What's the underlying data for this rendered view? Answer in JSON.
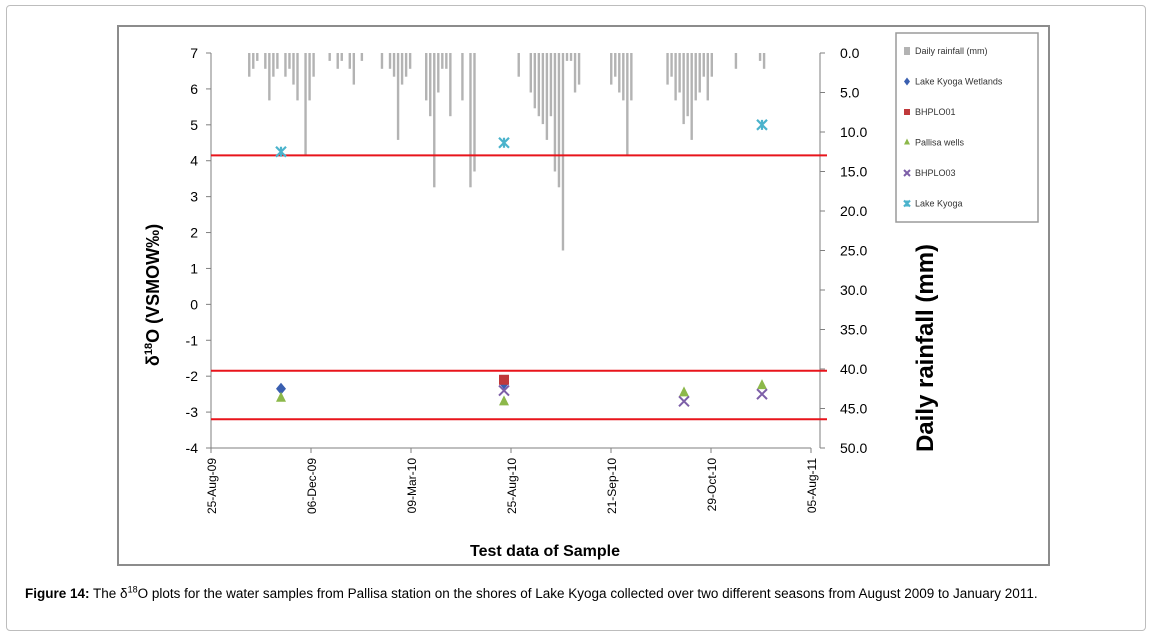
{
  "colors": {
    "rainfall": "#b3b3b3",
    "red_line": "#e8141b",
    "wetlands": "#3a5fb0",
    "bhplo01": "#c0393b",
    "pallisa": "#8cb84a",
    "bhplo03": "#7d5fa8",
    "kyoga": "#4bb3cc"
  },
  "caption": {
    "label": "Figure 14:",
    "text_before": " The δ",
    "sup": "18",
    "text_after": "O plots for the water samples from Pallisa station on the shores of Lake Kyoga collected over two different seasons from August 2009 to January 2011."
  },
  "chart_data": {
    "type": "scatter",
    "xlabel": "Test data of Sample",
    "ylabel_left": "δ18O (VSMOW‰)",
    "ylabel_left_parts": {
      "pre": "δ",
      "sup": "18",
      "post": "O (VSMOW‰)"
    },
    "ylabel_right": "Daily rainfall (mm)",
    "x_ticks": [
      "25-Aug-09",
      "06-Dec-09",
      "09-Mar-10",
      "25-Aug-10",
      "21-Sep-10",
      "29-Oct-10",
      "05-Aug-11"
    ],
    "ylim_left": [
      -4,
      7
    ],
    "y_ticks_left": [
      "7",
      "6",
      "5",
      "4",
      "3",
      "2",
      "1",
      "0",
      "-1",
      "-2",
      "-3",
      "-4"
    ],
    "ylim_right": [
      0,
      50
    ],
    "right_axis_inverted": true,
    "y_ticks_right": [
      "0.0",
      "5.0",
      "10.0",
      "15.0",
      "20.0",
      "25.0",
      "30.0",
      "35.0",
      "40.0",
      "45.0",
      "50.0"
    ],
    "legend_position": "top-right",
    "reference_lines_y": [
      4.15,
      -1.85,
      -3.2
    ],
    "series": [
      {
        "name": "Daily rainfall (mm)",
        "kind": "bar",
        "color": "#b3b3b3",
        "values": [
          0,
          0,
          3,
          2,
          1,
          0,
          2,
          6,
          3,
          2,
          0,
          3,
          2,
          4,
          6,
          0,
          13,
          6,
          3,
          0,
          0,
          0,
          1,
          0,
          2,
          1,
          0,
          2,
          4,
          0,
          1,
          0,
          0,
          0,
          0,
          2,
          0,
          2,
          3,
          11,
          4,
          3,
          2,
          0,
          0,
          0,
          6,
          8,
          17,
          5,
          2,
          2,
          8,
          0,
          0,
          6,
          0,
          17,
          15,
          0,
          0,
          0,
          0,
          0,
          0,
          0,
          0,
          0,
          0,
          3,
          0,
          0,
          5,
          7,
          8,
          9,
          11,
          8,
          15,
          17,
          25,
          1,
          1,
          5,
          4,
          0,
          0,
          0,
          0,
          0,
          0,
          0,
          4,
          3,
          5,
          6,
          13,
          6,
          0,
          0,
          0,
          0,
          0,
          0,
          0,
          0,
          4,
          3,
          6,
          5,
          9,
          8,
          11,
          6,
          5,
          3,
          6,
          3,
          0,
          0,
          0,
          0,
          0,
          2,
          0,
          0,
          0,
          0,
          0,
          1,
          2,
          0,
          0,
          0,
          0
        ],
        "x_range": [
          "Oct-09",
          "Jan-11"
        ]
      },
      {
        "name": "Lake Kyoga Wetlands",
        "marker": "diamond",
        "color": "#3a5fb0",
        "points": [
          {
            "x": "Nov-09",
            "y": -2.35
          },
          {
            "x": "Aug-10",
            "y": -2.2
          }
        ]
      },
      {
        "name": "BHPLO01",
        "marker": "square",
        "color": "#c0393b",
        "points": [
          {
            "x": "Aug-10",
            "y": -2.1
          }
        ]
      },
      {
        "name": "Pallisa wells",
        "marker": "triangle",
        "color": "#8cb84a",
        "points": [
          {
            "x": "Nov-09",
            "y": -2.6
          },
          {
            "x": "Aug-10",
            "y": -2.7
          },
          {
            "x": "Oct-10",
            "y": -2.45
          },
          {
            "x": "Jan-11",
            "y": -2.25
          }
        ]
      },
      {
        "name": "BHPLO03",
        "marker": "x",
        "color": "#7d5fa8",
        "points": [
          {
            "x": "Aug-10",
            "y": -2.4
          },
          {
            "x": "Oct-10",
            "y": -2.7
          },
          {
            "x": "Jan-11",
            "y": -2.5
          }
        ]
      },
      {
        "name": "Lake Kyoga",
        "marker": "star",
        "color": "#4bb3cc",
        "points": [
          {
            "x": "Nov-09",
            "y": 4.25
          },
          {
            "x": "Aug-10",
            "y": 4.5
          },
          {
            "x": "Jan-11",
            "y": 5.0
          }
        ]
      }
    ]
  }
}
